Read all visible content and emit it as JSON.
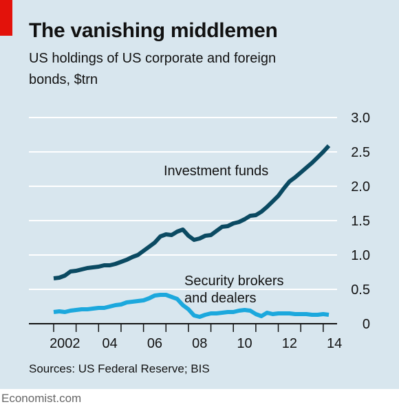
{
  "title": "The vanishing middlemen",
  "subtitle": "US holdings of US corporate and foreign bonds, $trn",
  "source": "Sources: US Federal Reserve; BIS",
  "brand": "Economist.com",
  "colors": {
    "background": "#d8e6ee",
    "investment_funds": "#0b4a62",
    "brokers_dealers": "#1ca8dd",
    "accent": "#e3120b",
    "grid": "#ffffff"
  },
  "chart_data": {
    "type": "line",
    "title": "The vanishing middlemen",
    "subtitle": "US holdings of US corporate and foreign bonds, $trn",
    "xlabel": "",
    "ylabel": "",
    "xlim": [
      2002,
      2014.4
    ],
    "ylim": [
      0,
      3.0
    ],
    "x_ticks": [
      {
        "value": 2002,
        "label": "2002"
      },
      {
        "value": 2004,
        "label": "04"
      },
      {
        "value": 2006,
        "label": "06"
      },
      {
        "value": 2008,
        "label": "08"
      },
      {
        "value": 2010,
        "label": "10"
      },
      {
        "value": 2012,
        "label": "12"
      },
      {
        "value": 2014,
        "label": "14"
      }
    ],
    "y_ticks": [
      {
        "value": 0,
        "label": "0"
      },
      {
        "value": 0.5,
        "label": "0.5"
      },
      {
        "value": 1.0,
        "label": "1.0"
      },
      {
        "value": 1.5,
        "label": "1.5"
      },
      {
        "value": 2.0,
        "label": "2.0"
      },
      {
        "value": 2.5,
        "label": "2.5"
      },
      {
        "value": 3.0,
        "label": "3.0"
      }
    ],
    "grid": true,
    "series": [
      {
        "name": "Investment funds",
        "color": "#0b4a62",
        "x": [
          2002.0,
          2002.25,
          2002.5,
          2002.75,
          2003.0,
          2003.25,
          2003.5,
          2003.75,
          2004.0,
          2004.25,
          2004.5,
          2004.75,
          2005.0,
          2005.25,
          2005.5,
          2005.75,
          2006.0,
          2006.25,
          2006.5,
          2006.75,
          2007.0,
          2007.25,
          2007.5,
          2007.75,
          2008.0,
          2008.25,
          2008.5,
          2008.75,
          2009.0,
          2009.25,
          2009.5,
          2009.75,
          2010.0,
          2010.25,
          2010.5,
          2010.75,
          2011.0,
          2011.25,
          2011.5,
          2011.75,
          2012.0,
          2012.25,
          2012.5,
          2012.75,
          2013.0,
          2013.25,
          2013.5,
          2013.75,
          2014.0,
          2014.25
        ],
        "values": [
          0.66,
          0.67,
          0.7,
          0.76,
          0.77,
          0.79,
          0.81,
          0.82,
          0.83,
          0.85,
          0.85,
          0.87,
          0.9,
          0.93,
          0.97,
          1.0,
          1.06,
          1.12,
          1.18,
          1.27,
          1.3,
          1.29,
          1.34,
          1.37,
          1.28,
          1.22,
          1.24,
          1.28,
          1.29,
          1.35,
          1.41,
          1.42,
          1.46,
          1.48,
          1.52,
          1.57,
          1.58,
          1.63,
          1.7,
          1.78,
          1.86,
          1.97,
          2.07,
          2.13,
          2.2,
          2.27,
          2.34,
          2.42,
          2.5,
          2.59
        ]
      },
      {
        "name": "Security brokers and dealers",
        "color": "#1ca8dd",
        "x": [
          2002.0,
          2002.25,
          2002.5,
          2002.75,
          2003.0,
          2003.25,
          2003.5,
          2003.75,
          2004.0,
          2004.25,
          2004.5,
          2004.75,
          2005.0,
          2005.25,
          2005.5,
          2005.75,
          2006.0,
          2006.25,
          2006.5,
          2006.75,
          2007.0,
          2007.25,
          2007.5,
          2007.75,
          2008.0,
          2008.25,
          2008.5,
          2008.75,
          2009.0,
          2009.25,
          2009.5,
          2009.75,
          2010.0,
          2010.25,
          2010.5,
          2010.75,
          2011.0,
          2011.25,
          2011.5,
          2011.75,
          2012.0,
          2012.25,
          2012.5,
          2012.75,
          2013.0,
          2013.25,
          2013.5,
          2013.75,
          2014.0,
          2014.25
        ],
        "values": [
          0.17,
          0.18,
          0.17,
          0.19,
          0.2,
          0.21,
          0.21,
          0.22,
          0.23,
          0.23,
          0.25,
          0.27,
          0.28,
          0.31,
          0.32,
          0.33,
          0.34,
          0.37,
          0.41,
          0.42,
          0.42,
          0.39,
          0.36,
          0.27,
          0.21,
          0.12,
          0.1,
          0.13,
          0.15,
          0.15,
          0.16,
          0.17,
          0.17,
          0.19,
          0.2,
          0.19,
          0.14,
          0.11,
          0.16,
          0.14,
          0.15,
          0.15,
          0.15,
          0.14,
          0.14,
          0.14,
          0.13,
          0.13,
          0.14,
          0.13
        ]
      }
    ],
    "annotations": [
      {
        "series": "Investment funds",
        "lines": [
          "Investment funds"
        ]
      },
      {
        "series": "Security brokers and dealers",
        "lines": [
          "Security brokers",
          "and dealers"
        ]
      }
    ]
  }
}
